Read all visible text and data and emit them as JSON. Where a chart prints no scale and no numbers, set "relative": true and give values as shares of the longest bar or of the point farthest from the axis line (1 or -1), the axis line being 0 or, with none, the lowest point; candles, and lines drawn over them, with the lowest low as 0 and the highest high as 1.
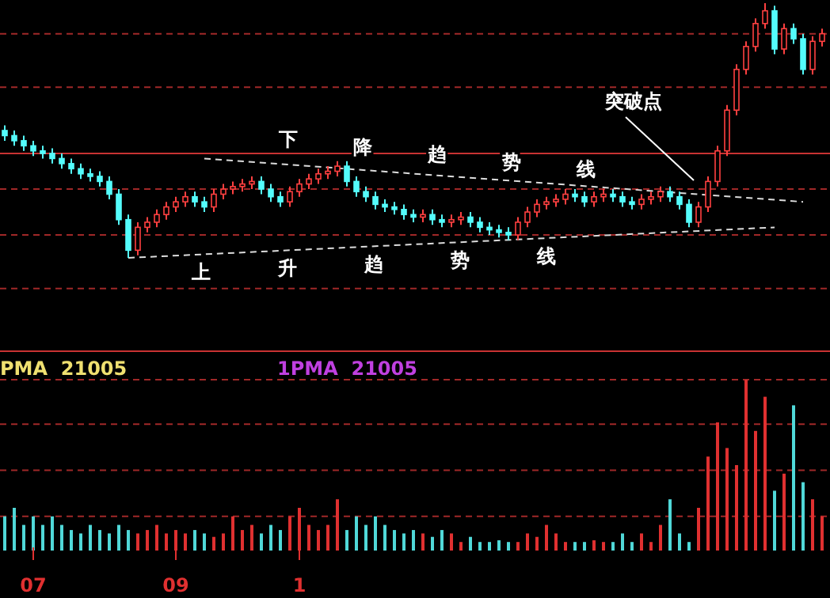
{
  "chart_data": [
    {
      "type": "candlestick",
      "relative": true,
      "tick_labels": false,
      "categories": [
        null,
        null,
        null,
        null,
        null,
        null,
        null,
        null,
        null,
        null,
        null,
        null,
        null,
        null,
        null,
        null,
        null,
        null,
        null,
        null,
        null,
        null,
        null,
        null,
        null,
        null,
        null,
        null,
        null,
        null,
        null,
        null,
        null,
        null,
        null,
        null,
        null,
        null,
        null,
        null,
        null,
        null,
        null,
        null,
        null,
        null,
        null,
        null,
        null,
        null,
        null,
        null,
        null,
        null,
        null,
        null,
        null,
        null,
        null,
        null,
        null,
        null,
        null,
        null,
        null,
        null,
        null,
        null,
        null,
        null,
        null,
        null,
        null,
        null,
        null,
        null,
        null,
        null,
        null,
        null,
        null,
        null,
        null,
        null,
        null,
        null,
        null
      ],
      "colors": [
        "#54fcfc",
        "#54fcfc",
        "#54fcfc",
        "#54fcfc",
        "#54fcfc",
        "#54fcfc",
        "#54fcfc",
        "#54fcfc",
        "#54fcfc",
        "#54fcfc",
        "#54fcfc",
        "#54fcfc",
        "#54fcfc",
        "#54fcfc",
        "#ff4040",
        "#ff4040",
        "#ff4040",
        "#ff4040",
        "#ff4040",
        "#ff4040",
        "#54fcfc",
        "#54fcfc",
        "#ff4040",
        "#ff4040",
        "#ff4040",
        "#ff4040",
        "#ff4040",
        "#54fcfc",
        "#54fcfc",
        "#54fcfc",
        "#ff4040",
        "#ff4040",
        "#ff4040",
        "#ff4040",
        "#ff4040",
        "#ff4040",
        "#54fcfc",
        "#54fcfc",
        "#54fcfc",
        "#54fcfc",
        "#54fcfc",
        "#54fcfc",
        "#54fcfc",
        "#54fcfc",
        "#ff4040",
        "#54fcfc",
        "#54fcfc",
        "#ff4040",
        "#ff4040",
        "#54fcfc",
        "#54fcfc",
        "#54fcfc",
        "#54fcfc",
        "#54fcfc",
        "#ff4040",
        "#ff4040",
        "#ff4040",
        "#ff4040",
        "#ff4040",
        "#ff4040",
        "#54fcfc",
        "#54fcfc",
        "#ff4040",
        "#ff4040",
        "#54fcfc",
        "#54fcfc",
        "#54fcfc",
        "#ff4040",
        "#ff4040",
        "#ff4040",
        "#54fcfc",
        "#54fcfc",
        "#54fcfc",
        "#ff4040",
        "#ff4040",
        "#ff4040",
        "#ff4040",
        "#ff4040",
        "#ff4040",
        "#ff4040",
        "#ff4040",
        "#54fcfc",
        "#ff4040",
        "#54fcfc",
        "#54fcfc",
        "#ff4040",
        "#ff4040"
      ],
      "ohlc": [
        [
          0.5,
          0.52,
          0.46,
          0.48
        ],
        [
          0.48,
          0.5,
          0.44,
          0.46
        ],
        [
          0.46,
          0.48,
          0.42,
          0.44
        ],
        [
          0.44,
          0.46,
          0.4,
          0.42
        ],
        [
          0.42,
          0.44,
          0.39,
          0.41
        ],
        [
          0.41,
          0.43,
          0.37,
          0.39
        ],
        [
          0.39,
          0.41,
          0.35,
          0.37
        ],
        [
          0.37,
          0.39,
          0.33,
          0.35
        ],
        [
          0.35,
          0.37,
          0.31,
          0.33
        ],
        [
          0.33,
          0.35,
          0.3,
          0.32
        ],
        [
          0.32,
          0.34,
          0.28,
          0.3
        ],
        [
          0.3,
          0.32,
          0.23,
          0.25
        ],
        [
          0.25,
          0.27,
          0.13,
          0.15
        ],
        [
          0.15,
          0.17,
          0,
          0.03
        ],
        [
          0.03,
          0.14,
          0.01,
          0.12
        ],
        [
          0.12,
          0.16,
          0.1,
          0.14
        ],
        [
          0.14,
          0.19,
          0.12,
          0.17
        ],
        [
          0.17,
          0.22,
          0.15,
          0.2
        ],
        [
          0.2,
          0.24,
          0.18,
          0.22
        ],
        [
          0.22,
          0.26,
          0.2,
          0.24
        ],
        [
          0.24,
          0.26,
          0.2,
          0.22
        ],
        [
          0.22,
          0.24,
          0.18,
          0.2
        ],
        [
          0.2,
          0.27,
          0.18,
          0.25
        ],
        [
          0.25,
          0.29,
          0.23,
          0.27
        ],
        [
          0.27,
          0.3,
          0.25,
          0.28
        ],
        [
          0.28,
          0.31,
          0.26,
          0.29
        ],
        [
          0.29,
          0.32,
          0.27,
          0.3
        ],
        [
          0.3,
          0.32,
          0.25,
          0.27
        ],
        [
          0.27,
          0.29,
          0.22,
          0.24
        ],
        [
          0.24,
          0.26,
          0.2,
          0.22
        ],
        [
          0.22,
          0.28,
          0.2,
          0.26
        ],
        [
          0.26,
          0.31,
          0.24,
          0.29
        ],
        [
          0.29,
          0.33,
          0.27,
          0.31
        ],
        [
          0.31,
          0.35,
          0.29,
          0.33
        ],
        [
          0.33,
          0.36,
          0.31,
          0.34
        ],
        [
          0.34,
          0.38,
          0.32,
          0.36
        ],
        [
          0.36,
          0.38,
          0.28,
          0.3
        ],
        [
          0.3,
          0.32,
          0.24,
          0.26
        ],
        [
          0.26,
          0.28,
          0.22,
          0.24
        ],
        [
          0.24,
          0.26,
          0.19,
          0.21
        ],
        [
          0.21,
          0.23,
          0.18,
          0.2
        ],
        [
          0.2,
          0.22,
          0.17,
          0.19
        ],
        [
          0.19,
          0.21,
          0.15,
          0.17
        ],
        [
          0.17,
          0.19,
          0.14,
          0.16
        ],
        [
          0.16,
          0.19,
          0.14,
          0.17
        ],
        [
          0.17,
          0.19,
          0.13,
          0.15
        ],
        [
          0.15,
          0.17,
          0.12,
          0.14
        ],
        [
          0.14,
          0.17,
          0.12,
          0.15
        ],
        [
          0.15,
          0.18,
          0.13,
          0.16
        ],
        [
          0.16,
          0.18,
          0.12,
          0.14
        ],
        [
          0.14,
          0.16,
          0.1,
          0.12
        ],
        [
          0.12,
          0.14,
          0.09,
          0.11
        ],
        [
          0.11,
          0.13,
          0.08,
          0.1
        ],
        [
          0.1,
          0.12,
          0.07,
          0.09
        ],
        [
          0.09,
          0.16,
          0.07,
          0.14
        ],
        [
          0.14,
          0.2,
          0.12,
          0.18
        ],
        [
          0.18,
          0.23,
          0.16,
          0.21
        ],
        [
          0.21,
          0.24,
          0.19,
          0.22
        ],
        [
          0.22,
          0.25,
          0.2,
          0.23
        ],
        [
          0.23,
          0.27,
          0.21,
          0.25
        ],
        [
          0.25,
          0.27,
          0.22,
          0.24
        ],
        [
          0.24,
          0.26,
          0.2,
          0.22
        ],
        [
          0.22,
          0.26,
          0.2,
          0.24
        ],
        [
          0.24,
          0.27,
          0.22,
          0.25
        ],
        [
          0.25,
          0.27,
          0.22,
          0.24
        ],
        [
          0.24,
          0.26,
          0.2,
          0.22
        ],
        [
          0.22,
          0.24,
          0.19,
          0.21
        ],
        [
          0.21,
          0.25,
          0.19,
          0.23
        ],
        [
          0.23,
          0.26,
          0.21,
          0.24
        ],
        [
          0.24,
          0.28,
          0.22,
          0.26
        ],
        [
          0.26,
          0.28,
          0.22,
          0.24
        ],
        [
          0.24,
          0.26,
          0.19,
          0.21
        ],
        [
          0.21,
          0.23,
          0.12,
          0.14
        ],
        [
          0.14,
          0.22,
          0.12,
          0.2
        ],
        [
          0.2,
          0.32,
          0.18,
          0.3
        ],
        [
          0.3,
          0.44,
          0.28,
          0.42
        ],
        [
          0.42,
          0.6,
          0.4,
          0.58
        ],
        [
          0.58,
          0.76,
          0.56,
          0.74
        ],
        [
          0.74,
          0.85,
          0.72,
          0.83
        ],
        [
          0.83,
          0.94,
          0.81,
          0.92
        ],
        [
          0.92,
          1,
          0.9,
          0.97
        ],
        [
          0.97,
          0.99,
          0.8,
          0.82
        ],
        [
          0.82,
          0.92,
          0.8,
          0.9
        ],
        [
          0.9,
          0.92,
          0.84,
          0.86
        ],
        [
          0.86,
          0.88,
          0.72,
          0.74
        ],
        [
          0.74,
          0.87,
          0.72,
          0.85
        ],
        [
          0.85,
          0.9,
          0.83,
          0.88
        ]
      ],
      "series": [
        {
          "type": "line",
          "color": "#dcdcdc",
          "line_style": "dashed",
          "values": [
            null,
            null,
            null,
            null,
            null,
            null,
            null,
            null,
            null,
            null,
            null,
            null,
            null,
            null,
            null,
            null,
            null,
            null,
            null,
            null,
            null,
            0.39,
            null,
            null,
            null,
            null,
            null,
            null,
            null,
            null,
            null,
            null,
            null,
            null,
            null,
            null,
            null,
            null,
            null,
            null,
            null,
            null,
            null,
            null,
            null,
            null,
            null,
            null,
            null,
            null,
            null,
            null,
            null,
            null,
            null,
            null,
            null,
            null,
            null,
            null,
            null,
            null,
            null,
            null,
            null,
            null,
            null,
            null,
            null,
            null,
            null,
            null,
            null,
            null,
            null,
            null,
            null,
            null,
            null,
            null,
            null,
            null,
            null,
            null,
            0.22,
            null,
            null
          ]
        },
        {
          "type": "line",
          "color": "#dcdcdc",
          "line_style": "dashed",
          "values": [
            null,
            null,
            null,
            null,
            null,
            null,
            null,
            null,
            null,
            null,
            null,
            null,
            null,
            0,
            null,
            null,
            null,
            null,
            null,
            null,
            null,
            null,
            null,
            null,
            null,
            null,
            null,
            null,
            null,
            null,
            null,
            null,
            null,
            null,
            null,
            null,
            null,
            null,
            null,
            null,
            null,
            null,
            null,
            null,
            null,
            null,
            null,
            null,
            null,
            null,
            null,
            null,
            null,
            null,
            null,
            null,
            null,
            null,
            null,
            null,
            null,
            null,
            null,
            null,
            null,
            null,
            null,
            null,
            null,
            null,
            null,
            null,
            null,
            null,
            null,
            null,
            null,
            null,
            null,
            null,
            null,
            0.12,
            null,
            null,
            null,
            null,
            null
          ]
        }
      ],
      "ref_lines": [
        {
          "axis": "y",
          "value": 0.41,
          "color": "#c83232",
          "line_style": "solid"
        },
        {
          "axis": "y",
          "value": 0.88,
          "color": "#a02828",
          "line_style": "dashed"
        },
        {
          "axis": "y",
          "value": 0.67,
          "color": "#a02828",
          "line_style": "dashed"
        },
        {
          "axis": "y",
          "value": 0.27,
          "color": "#a02828",
          "line_style": "dashed"
        },
        {
          "axis": "y",
          "value": 0.09,
          "color": "#a02828",
          "line_style": "dashed"
        },
        {
          "axis": "y",
          "value": -0.12,
          "color": "#a02828",
          "line_style": "dashed"
        }
      ],
      "annotations": [
        "下降趋势线",
        "上升趋势线",
        "突破点"
      ]
    },
    {
      "type": "bar",
      "relative": true,
      "tick_labels": "x",
      "ref_lines": [
        {
          "axis": "y",
          "value": 1,
          "color": "#a02828",
          "line_style": "dashed"
        },
        {
          "axis": "y",
          "value": 0.74,
          "color": "#a02828",
          "line_style": "dashed"
        },
        {
          "axis": "y",
          "value": 0.47,
          "color": "#a02828",
          "line_style": "dashed"
        },
        {
          "axis": "y",
          "value": 0.2,
          "color": "#a02828",
          "line_style": "dashed"
        }
      ],
      "categories": [
        null,
        null,
        null,
        "07",
        null,
        null,
        null,
        null,
        null,
        null,
        null,
        null,
        null,
        null,
        null,
        null,
        null,
        null,
        "09",
        null,
        null,
        null,
        null,
        null,
        null,
        null,
        null,
        null,
        null,
        null,
        null,
        "1",
        null,
        null,
        null,
        null,
        null,
        null,
        null,
        null,
        null,
        null,
        null,
        null,
        null,
        null,
        null,
        null,
        null,
        null,
        null,
        null,
        null,
        null,
        null,
        null,
        null,
        null,
        null,
        null,
        null,
        null,
        null,
        null,
        null,
        null,
        null,
        null,
        null,
        null,
        null,
        null,
        null,
        null,
        null,
        null,
        null,
        null,
        null,
        null,
        null,
        null,
        null,
        null,
        null,
        null,
        null
      ],
      "values": [
        0.2,
        0.25,
        0.15,
        0.2,
        0.15,
        0.2,
        0.15,
        0.12,
        0.1,
        0.15,
        0.12,
        0.1,
        0.15,
        0.12,
        0.1,
        0.12,
        0.15,
        0.1,
        0.12,
        0.1,
        0.12,
        0.1,
        0.08,
        0.1,
        0.2,
        0.12,
        0.15,
        0.1,
        0.15,
        0.12,
        0.2,
        0.25,
        0.15,
        0.12,
        0.15,
        0.3,
        0.12,
        0.2,
        0.15,
        0.2,
        0.15,
        0.12,
        0.1,
        0.12,
        0.1,
        0.08,
        0.12,
        0.1,
        0.05,
        0.08,
        0.05,
        0.05,
        0.06,
        0.05,
        0.05,
        0.1,
        0.08,
        0.15,
        0.1,
        0.05,
        0.05,
        0.05,
        0.06,
        0.05,
        0.05,
        0.1,
        0.05,
        0.1,
        0.05,
        0.15,
        0.3,
        0.1,
        0.05,
        0.25,
        0.55,
        0.75,
        0.6,
        0.5,
        1,
        0.7,
        0.9,
        0.35,
        0.45,
        0.85,
        0.4,
        0.3,
        0.2
      ],
      "colors": [
        "#50d8d8",
        "#50d8d8",
        "#50d8d8",
        "#50d8d8",
        "#50d8d8",
        "#50d8d8",
        "#50d8d8",
        "#50d8d8",
        "#50d8d8",
        "#50d8d8",
        "#50d8d8",
        "#50d8d8",
        "#50d8d8",
        "#50d8d8",
        "#e03030",
        "#e03030",
        "#e03030",
        "#e03030",
        "#e03030",
        "#e03030",
        "#50d8d8",
        "#50d8d8",
        "#e03030",
        "#e03030",
        "#e03030",
        "#e03030",
        "#e03030",
        "#50d8d8",
        "#50d8d8",
        "#50d8d8",
        "#e03030",
        "#e03030",
        "#e03030",
        "#e03030",
        "#e03030",
        "#e03030",
        "#50d8d8",
        "#50d8d8",
        "#50d8d8",
        "#50d8d8",
        "#50d8d8",
        "#50d8d8",
        "#50d8d8",
        "#50d8d8",
        "#e03030",
        "#50d8d8",
        "#50d8d8",
        "#e03030",
        "#e03030",
        "#50d8d8",
        "#50d8d8",
        "#50d8d8",
        "#50d8d8",
        "#50d8d8",
        "#e03030",
        "#e03030",
        "#e03030",
        "#e03030",
        "#e03030",
        "#e03030",
        "#50d8d8",
        "#50d8d8",
        "#e03030",
        "#e03030",
        "#50d8d8",
        "#50d8d8",
        "#50d8d8",
        "#e03030",
        "#e03030",
        "#e03030",
        "#50d8d8",
        "#50d8d8",
        "#50d8d8",
        "#e03030",
        "#e03030",
        "#e03030",
        "#e03030",
        "#e03030",
        "#e03030",
        "#e03030",
        "#e03030",
        "#50d8d8",
        "#e03030",
        "#50d8d8",
        "#50d8d8",
        "#e03030",
        "#e03030"
      ],
      "annotations": [
        "PMA  21005",
        "1PMA  21005"
      ]
    }
  ]
}
